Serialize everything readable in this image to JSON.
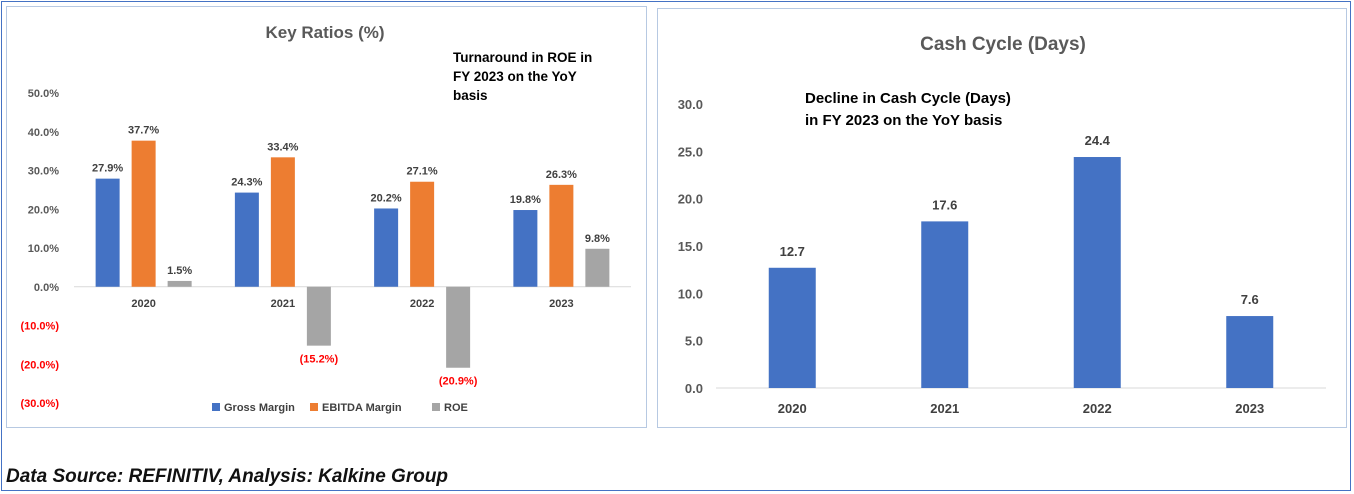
{
  "footer": "Data Source: REFINITIV, Analysis: Kalkine Group",
  "chart_data": [
    {
      "type": "bar",
      "title": "Key Ratios (%)",
      "annotation": [
        "Turnaround in ROE in",
        "FY 2023 on the YoY",
        "basis"
      ],
      "categories": [
        "2020",
        "2021",
        "2022",
        "2023"
      ],
      "series": [
        {
          "name": "Gross Margin",
          "color": "#4472c4",
          "values": [
            27.9,
            24.3,
            20.2,
            19.8
          ],
          "labels": [
            "27.9%",
            "24.3%",
            "20.2%",
            "19.8%"
          ]
        },
        {
          "name": "EBITDA Margin",
          "color": "#ed7d31",
          "values": [
            37.7,
            33.4,
            27.1,
            26.3
          ],
          "labels": [
            "37.7%",
            "33.4%",
            "27.1%",
            "26.3%"
          ]
        },
        {
          "name": "ROE",
          "color": "#a5a5a5",
          "values": [
            1.5,
            -15.2,
            -20.9,
            9.8
          ],
          "labels": [
            "1.5%",
            "(15.2%)",
            "(20.9%)",
            "9.8%"
          ]
        }
      ],
      "yticks": [
        "50.0%",
        "40.0%",
        "30.0%",
        "20.0%",
        "10.0%",
        "0.0%",
        "(10.0%)",
        "(20.0%)",
        "(30.0%)"
      ],
      "ytick_values": [
        50,
        40,
        30,
        20,
        10,
        0,
        -10,
        -20,
        -30
      ],
      "ylim": [
        -30,
        50
      ],
      "negative_color": "#ff0000",
      "legend": "bottom",
      "grid": false
    },
    {
      "type": "bar",
      "title": "Cash Cycle (Days)",
      "annotation": [
        "Decline in Cash Cycle (Days)",
        "in FY 2023 on the YoY basis"
      ],
      "categories": [
        "2020",
        "2021",
        "2022",
        "2023"
      ],
      "series": [
        {
          "color": "#4472c4",
          "values": [
            12.7,
            17.6,
            24.4,
            7.6
          ],
          "labels": [
            "12.7",
            "17.6",
            "24.4",
            "7.6"
          ]
        }
      ],
      "yticks": [
        "30.0",
        "25.0",
        "20.0",
        "15.0",
        "10.0",
        "5.0",
        "0.0"
      ],
      "ytick_values": [
        30,
        25,
        20,
        15,
        10,
        5,
        0
      ],
      "ylim": [
        0,
        30
      ],
      "legend": "none",
      "grid": false
    }
  ]
}
